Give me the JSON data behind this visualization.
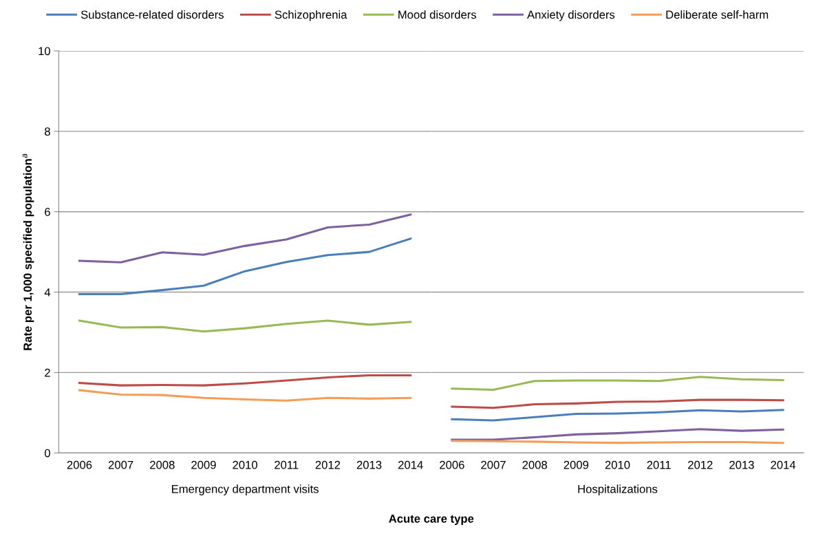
{
  "chart_data": [
    {
      "type": "line",
      "ylabel": "Rate per 1,000 specified population$^{a}$",
      "xlabel": "Emergency department visits",
      "annotations": [
        "Acute care type"
      ],
      "categories": [
        "2006",
        "2007",
        "2008",
        "2009",
        "2010",
        "2011",
        "2012",
        "2013",
        "2014"
      ],
      "ylim": [
        0,
        10
      ],
      "yticks": [
        0,
        2,
        4,
        6,
        8,
        10
      ],
      "grid": "y",
      "legend": "top",
      "marker": "none",
      "line_style": "solid",
      "series": [
        {
          "name": "Substance-related disorders",
          "color": "#4a7ebb",
          "values": [
            3.95,
            3.95,
            4.05,
            4.16,
            4.52,
            4.75,
            4.92,
            5.0,
            5.33
          ]
        },
        {
          "name": "Schizophrenia",
          "color": "#be4b48",
          "values": [
            1.74,
            1.68,
            1.69,
            1.68,
            1.73,
            1.8,
            1.88,
            1.93,
            1.93
          ]
        },
        {
          "name": "Mood disorders",
          "color": "#98b954",
          "values": [
            3.29,
            3.12,
            3.13,
            3.02,
            3.1,
            3.21,
            3.29,
            3.19,
            3.26
          ]
        },
        {
          "name": "Anxiety disorders",
          "color": "#7d60a0",
          "values": [
            4.78,
            4.74,
            4.99,
            4.93,
            5.15,
            5.31,
            5.61,
            5.68,
            5.93
          ]
        },
        {
          "name": "Deliberate self-harm",
          "color": "#f59d56",
          "values": [
            1.56,
            1.45,
            1.44,
            1.37,
            1.33,
            1.3,
            1.37,
            1.35,
            1.37
          ]
        }
      ]
    },
    {
      "type": "line",
      "xlabel": "Hospitalizations",
      "categories": [
        "2006",
        "2007",
        "2008",
        "2009",
        "2010",
        "2011",
        "2012",
        "2013",
        "2014"
      ],
      "ylim": [
        0,
        10
      ],
      "yticks": [
        0,
        2,
        4,
        6,
        8,
        10
      ],
      "tick_labels": "x",
      "grid": "y",
      "marker": "none",
      "line_style": "solid",
      "series": [
        {
          "color": "#4a7ebb",
          "values": [
            0.84,
            0.81,
            0.89,
            0.97,
            0.98,
            1.01,
            1.06,
            1.03,
            1.07
          ]
        },
        {
          "color": "#be4b48",
          "values": [
            1.15,
            1.12,
            1.21,
            1.23,
            1.27,
            1.28,
            1.32,
            1.32,
            1.31
          ]
        },
        {
          "color": "#98b954",
          "values": [
            1.6,
            1.57,
            1.79,
            1.8,
            1.8,
            1.79,
            1.89,
            1.83,
            1.81
          ]
        },
        {
          "color": "#7d60a0",
          "values": [
            0.33,
            0.33,
            0.39,
            0.46,
            0.49,
            0.54,
            0.59,
            0.55,
            0.58
          ]
        },
        {
          "color": "#f59d56",
          "values": [
            0.3,
            0.29,
            0.28,
            0.26,
            0.25,
            0.26,
            0.27,
            0.27,
            0.25
          ]
        }
      ]
    }
  ]
}
